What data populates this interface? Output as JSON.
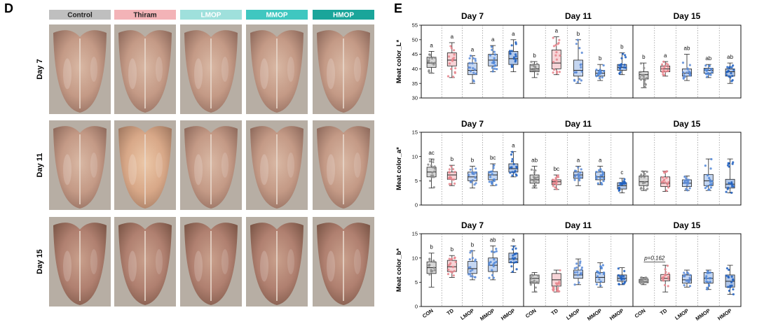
{
  "panel_d": {
    "letter": "D",
    "groups": [
      {
        "label": "Control",
        "color": "#bfbfbf",
        "text_color": "#222222"
      },
      {
        "label": "Thiram",
        "color": "#f3b3b7",
        "text_color": "#222222"
      },
      {
        "label": "LMOP",
        "color": "#9fe0dc",
        "text_color": "#ffffff"
      },
      {
        "label": "MMOP",
        "color": "#3fc7c0",
        "text_color": "#ffffff"
      },
      {
        "label": "HMOP",
        "color": "#1aa59a",
        "text_color": "#ffffff"
      }
    ],
    "rows": [
      "Day 7",
      "Day 11",
      "Day 15"
    ]
  },
  "panel_e": {
    "letter": "E",
    "categories": [
      "CON",
      "TD",
      "LMOP",
      "MMOP",
      "HMOP"
    ],
    "colors": {
      "CON": "#8c8c8c",
      "TD": "#e8848c",
      "LMOP": "#5a8ad6",
      "MMOP": "#4f86d8",
      "HMOP": "#1f5fbf"
    }
  },
  "chart_data": [
    {
      "type": "box",
      "ylabel": "Meat color_L*",
      "ylim": [
        30,
        55
      ],
      "yticks": [
        "30",
        "35",
        "40",
        "45",
        "50",
        "55"
      ],
      "categories": [
        "CON",
        "TD",
        "LMOP",
        "MMOP",
        "HMOP"
      ],
      "panels": [
        {
          "title": "Day 7",
          "boxes": [
            {
              "min": 38.5,
              "q1": 40.5,
              "median": 42,
              "q3": 44,
              "max": 46
            },
            {
              "min": 37,
              "q1": 41,
              "median": 43,
              "q3": 45.5,
              "max": 49
            },
            {
              "min": 35,
              "q1": 38,
              "median": 39.5,
              "q3": 42,
              "max": 44.5
            },
            {
              "min": 39,
              "q1": 41,
              "median": 43,
              "q3": 45,
              "max": 48
            },
            {
              "min": 39,
              "q1": 41.5,
              "median": 43.5,
              "q3": 46,
              "max": 50
            }
          ],
          "letters": [
            "a",
            "a",
            "a",
            "a",
            "a"
          ]
        },
        {
          "title": "Day 11",
          "boxes": [
            {
              "min": 37,
              "q1": 39,
              "median": 40,
              "q3": 41.5,
              "max": 42.5
            },
            {
              "min": 38,
              "q1": 40,
              "median": 42,
              "q3": 46.5,
              "max": 51
            },
            {
              "min": 35,
              "q1": 37.5,
              "median": 39.5,
              "q3": 43,
              "max": 50
            },
            {
              "min": 36,
              "q1": 37.5,
              "median": 38.5,
              "q3": 39.5,
              "max": 41.5
            },
            {
              "min": 38,
              "q1": 39.5,
              "median": 40.5,
              "q3": 41.5,
              "max": 45.5
            }
          ],
          "letters": [
            "b",
            "a",
            "b",
            "b",
            "b"
          ]
        },
        {
          "title": "Day 15",
          "boxes": [
            {
              "min": 33.5,
              "q1": 36.5,
              "median": 38,
              "q3": 39,
              "max": 42
            },
            {
              "min": 37.5,
              "q1": 39,
              "median": 40,
              "q3": 41,
              "max": 42.5
            },
            {
              "min": 36,
              "q1": 37.5,
              "median": 38.5,
              "q3": 40,
              "max": 45
            },
            {
              "min": 37,
              "q1": 38.5,
              "median": 39.5,
              "q3": 40.2,
              "max": 41.5
            },
            {
              "min": 35,
              "q1": 37.5,
              "median": 39,
              "q3": 40,
              "max": 42
            }
          ],
          "letters": [
            "b",
            "a",
            "ab",
            "ab",
            "ab"
          ]
        }
      ]
    },
    {
      "type": "box",
      "ylabel": "Meat color_a*",
      "ylim": [
        0,
        15
      ],
      "yticks": [
        "0",
        "5",
        "10",
        "15"
      ],
      "categories": [
        "CON",
        "TD",
        "LMOP",
        "MMOP",
        "HMOP"
      ],
      "panels": [
        {
          "title": "Day 7",
          "boxes": [
            {
              "min": 3.5,
              "q1": 5.8,
              "median": 6.8,
              "q3": 7.8,
              "max": 9.5
            },
            {
              "min": 4,
              "q1": 5.3,
              "median": 6.2,
              "q3": 6.8,
              "max": 8.2
            },
            {
              "min": 3.5,
              "q1": 5,
              "median": 5.8,
              "q3": 6.8,
              "max": 8
            },
            {
              "min": 4,
              "q1": 5.2,
              "median": 6.2,
              "q3": 6.9,
              "max": 8.5
            },
            {
              "min": 5.8,
              "q1": 6.8,
              "median": 7.5,
              "q3": 8.5,
              "max": 11
            }
          ],
          "letters": [
            "ac",
            "b",
            "b",
            "bc",
            "a"
          ]
        },
        {
          "title": "Day 11",
          "boxes": [
            {
              "min": 3.5,
              "q1": 4.5,
              "median": 5.2,
              "q3": 6.2,
              "max": 8
            },
            {
              "min": 3.2,
              "q1": 4.2,
              "median": 4.8,
              "q3": 5.2,
              "max": 6.2
            },
            {
              "min": 4,
              "q1": 5.5,
              "median": 6.2,
              "q3": 6.8,
              "max": 8
            },
            {
              "min": 4.2,
              "q1": 5.2,
              "median": 5.8,
              "q3": 6.8,
              "max": 8
            },
            {
              "min": 2.5,
              "q1": 3.3,
              "median": 4,
              "q3": 4.6,
              "max": 5.5
            }
          ],
          "letters": [
            "ab",
            "bc",
            "a",
            "a",
            "c"
          ]
        },
        {
          "title": "Day 15",
          "boxes": [
            {
              "min": 3,
              "q1": 4,
              "median": 4.8,
              "q3": 6,
              "max": 7
            },
            {
              "min": 2.8,
              "q1": 3.8,
              "median": 4.5,
              "q3": 5.8,
              "max": 7
            },
            {
              "min": 3,
              "q1": 3.8,
              "median": 4.5,
              "q3": 5.2,
              "max": 6
            },
            {
              "min": 3,
              "q1": 4,
              "median": 5,
              "q3": 6.3,
              "max": 9.5
            },
            {
              "min": 2.5,
              "q1": 3.5,
              "median": 4.3,
              "q3": 5.3,
              "max": 9.5
            }
          ],
          "letters": [
            "",
            "",
            "",
            "",
            ""
          ]
        }
      ]
    },
    {
      "type": "box",
      "ylabel": "Meat color_b*",
      "ylim": [
        0,
        15
      ],
      "yticks": [
        "0",
        "5",
        "10",
        "15"
      ],
      "categories": [
        "CON",
        "TD",
        "LMOP",
        "MMOP",
        "HMOP"
      ],
      "panels": [
        {
          "title": "Day 7",
          "boxes": [
            {
              "min": 4,
              "q1": 6.8,
              "median": 8,
              "q3": 9.2,
              "max": 11
            },
            {
              "min": 6,
              "q1": 7.2,
              "median": 8.2,
              "q3": 9.5,
              "max": 10.5
            },
            {
              "min": 5.5,
              "q1": 6.8,
              "median": 7.8,
              "q3": 9.3,
              "max": 11.5
            },
            {
              "min": 5.5,
              "q1": 7.2,
              "median": 8.5,
              "q3": 10,
              "max": 12.5
            },
            {
              "min": 7,
              "q1": 9,
              "median": 9.8,
              "q3": 11,
              "max": 12.5
            }
          ],
          "letters": [
            "b",
            "b",
            "b",
            "ab",
            "a"
          ]
        },
        {
          "title": "Day 11",
          "boxes": [
            {
              "min": 3,
              "q1": 4.8,
              "median": 5.8,
              "q3": 6.5,
              "max": 7
            },
            {
              "min": 3,
              "q1": 4.2,
              "median": 5.5,
              "q3": 6.8,
              "max": 7.5
            },
            {
              "min": 4.5,
              "q1": 5.8,
              "median": 6.5,
              "q3": 7.5,
              "max": 9.8
            },
            {
              "min": 4,
              "q1": 5,
              "median": 6,
              "q3": 7,
              "max": 9
            },
            {
              "min": 4.5,
              "q1": 5.2,
              "median": 5.8,
              "q3": 6.5,
              "max": 8
            }
          ],
          "letters": [
            "",
            "",
            "",
            "",
            ""
          ]
        },
        {
          "title": "Day 15",
          "boxes": [
            {
              "min": 4.5,
              "q1": 4.9,
              "median": 5.2,
              "q3": 5.6,
              "max": 6
            },
            {
              "min": 3,
              "q1": 5.3,
              "median": 5.8,
              "q3": 6.6,
              "max": 8.5
            },
            {
              "min": 4,
              "q1": 4.8,
              "median": 5.5,
              "q3": 6.5,
              "max": 7.5
            },
            {
              "min": 3.5,
              "q1": 4.8,
              "median": 5.8,
              "q3": 7,
              "max": 7.5
            },
            {
              "min": 2.5,
              "q1": 4,
              "median": 5.2,
              "q3": 6.5,
              "max": 8.5
            }
          ],
          "letters": [
            "",
            "",
            "",
            "",
            ""
          ],
          "annotation": "p=0.162"
        }
      ]
    }
  ]
}
